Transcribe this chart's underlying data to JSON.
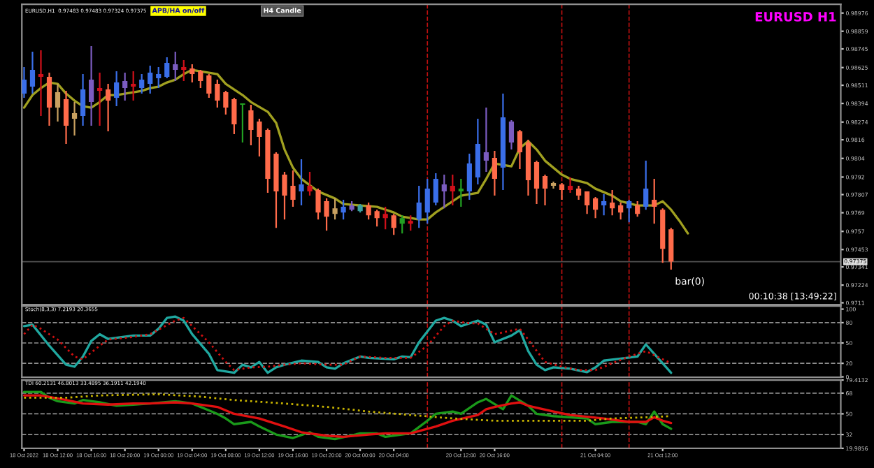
{
  "chart_data": [
    {
      "type": "candlestick",
      "title": "EURUSD,H1  0.97483 0.97483 0.97324 0.97375",
      "annotations": [
        "APB/HA on/off",
        "H4 Candle",
        "EURUSD H1",
        "00:10:38 [13:49:22]",
        {
          "text": "bar(0)",
          "x": "2022-10-21T13:00",
          "y": 0.97324
        }
      ],
      "x": [
        "2022-10-18T08:00",
        "2022-10-18T09:00",
        "2022-10-18T10:00",
        "2022-10-18T11:00",
        "2022-10-18T12:00",
        "2022-10-18T13:00",
        "2022-10-18T14:00",
        "2022-10-18T15:00",
        "2022-10-18T16:00",
        "2022-10-18T17:00",
        "2022-10-18T18:00",
        "2022-10-18T19:00",
        "2022-10-18T20:00",
        "2022-10-18T21:00",
        "2022-10-18T22:00",
        "2022-10-18T23:00",
        "2022-10-19T00:00",
        "2022-10-19T01:00",
        "2022-10-19T02:00",
        "2022-10-19T03:00",
        "2022-10-19T04:00",
        "2022-10-19T05:00",
        "2022-10-19T06:00",
        "2022-10-19T07:00",
        "2022-10-19T08:00",
        "2022-10-19T09:00",
        "2022-10-19T10:00",
        "2022-10-19T11:00",
        "2022-10-19T12:00",
        "2022-10-19T13:00",
        "2022-10-19T14:00",
        "2022-10-19T15:00",
        "2022-10-19T16:00",
        "2022-10-19T17:00",
        "2022-10-19T18:00",
        "2022-10-19T19:00",
        "2022-10-19T20:00",
        "2022-10-19T21:00",
        "2022-10-19T22:00",
        "2022-10-19T23:00",
        "2022-10-20T00:00",
        "2022-10-20T01:00",
        "2022-10-20T02:00",
        "2022-10-20T03:00",
        "2022-10-20T04:00",
        "2022-10-20T05:00",
        "2022-10-20T06:00",
        "2022-10-20T07:00",
        "2022-10-20T08:00",
        "2022-10-20T09:00",
        "2022-10-20T10:00",
        "2022-10-20T11:00",
        "2022-10-20T12:00",
        "2022-10-20T13:00",
        "2022-10-20T14:00",
        "2022-10-20T15:00",
        "2022-10-20T16:00",
        "2022-10-20T17:00",
        "2022-10-20T18:00",
        "2022-10-20T19:00",
        "2022-10-20T20:00",
        "2022-10-20T21:00",
        "2022-10-20T22:00",
        "2022-10-20T23:00",
        "2022-10-21T00:00",
        "2022-10-21T01:00",
        "2022-10-21T02:00",
        "2022-10-21T03:00",
        "2022-10-21T04:00",
        "2022-10-21T05:00",
        "2022-10-21T06:00",
        "2022-10-21T07:00",
        "2022-10-21T08:00",
        "2022-10-21T09:00",
        "2022-10-21T10:00",
        "2022-10-21T11:00",
        "2022-10-21T12:00",
        "2022-10-21T13:00"
      ],
      "ohlc": [
        [
          0.98457,
          0.98628,
          0.9843,
          0.98547
        ],
        [
          0.98502,
          0.98727,
          0.98457,
          0.9861
        ],
        [
          0.98583,
          0.98736,
          0.98313,
          0.98565
        ],
        [
          0.98565,
          0.98592,
          0.9825,
          0.98367
        ],
        [
          0.98367,
          0.9852,
          0.98277,
          0.98466
        ],
        [
          0.98421,
          0.98475,
          0.98133,
          0.9825
        ],
        [
          0.98295,
          0.98403,
          0.98187,
          0.98331
        ],
        [
          0.98313,
          0.98583,
          0.9825,
          0.98484
        ],
        [
          0.98403,
          0.98763,
          0.9825,
          0.98547
        ],
        [
          0.98493,
          0.98592,
          0.9825,
          0.98475
        ],
        [
          0.98484,
          0.9852,
          0.98214,
          0.98412
        ],
        [
          0.9843,
          0.98601,
          0.98376,
          0.98529
        ],
        [
          0.98493,
          0.98592,
          0.98412,
          0.98538
        ],
        [
          0.9852,
          0.98601,
          0.98412,
          0.98502
        ],
        [
          0.98493,
          0.98583,
          0.98457,
          0.98547
        ],
        [
          0.9852,
          0.98637,
          0.98457,
          0.98592
        ],
        [
          0.98556,
          0.98628,
          0.98493,
          0.98583
        ],
        [
          0.98565,
          0.98691,
          0.98556,
          0.98655
        ],
        [
          0.9861,
          0.98727,
          0.98538,
          0.98646
        ],
        [
          0.98628,
          0.98673,
          0.98538,
          0.9861
        ],
        [
          0.98619,
          0.98646,
          0.98529,
          0.98583
        ],
        [
          0.98601,
          0.9861,
          0.98493,
          0.98538
        ],
        [
          0.98574,
          0.98583,
          0.9843,
          0.98457
        ],
        [
          0.9852,
          0.98547,
          0.98367,
          0.98412
        ],
        [
          0.98466,
          0.98475,
          0.98322,
          0.98367
        ],
        [
          0.98421,
          0.9843,
          0.98196,
          0.98259
        ],
        [
          0.98385,
          0.98394,
          0.98142,
          0.98394
        ],
        [
          0.98349,
          0.98385,
          0.98124,
          0.98223
        ],
        [
          0.98277,
          0.98295,
          0.98052,
          0.98178
        ],
        [
          0.98223,
          0.98232,
          0.97818,
          0.97908
        ],
        [
          0.9807,
          0.98079,
          0.97593,
          0.97827
        ],
        [
          0.97935,
          0.97953,
          0.97647,
          0.978
        ],
        [
          0.97863,
          0.97962,
          0.97728,
          0.97773
        ],
        [
          0.97827,
          0.98034,
          0.97737,
          0.97872
        ],
        [
          0.97863,
          0.97953,
          0.978,
          0.97827
        ],
        [
          0.97836,
          0.97845,
          0.97647,
          0.97692
        ],
        [
          0.97764,
          0.97782,
          0.97575,
          0.97665
        ],
        [
          0.97683,
          0.97782,
          0.97647,
          0.97719
        ],
        [
          0.97692,
          0.97773,
          0.97647,
          0.97728
        ],
        [
          0.9771,
          0.97764,
          0.97701,
          0.97737
        ],
        [
          0.97701,
          0.97746,
          0.97692,
          0.97737
        ],
        [
          0.97737,
          0.97755,
          0.97647,
          0.97674
        ],
        [
          0.97701,
          0.9771,
          0.97602,
          0.97656
        ],
        [
          0.97683,
          0.97728,
          0.97584,
          0.97656
        ],
        [
          0.97674,
          0.97683,
          0.97548,
          0.97593
        ],
        [
          0.9762,
          0.97674,
          0.97557,
          0.97656
        ],
        [
          0.97638,
          0.97674,
          0.97575,
          0.9762
        ],
        [
          0.97647,
          0.97863,
          0.97593,
          0.97755
        ],
        [
          0.97692,
          0.97908,
          0.9762,
          0.97845
        ],
        [
          0.97755,
          0.97944,
          0.97737,
          0.97908
        ],
        [
          0.97827,
          0.97935,
          0.97719,
          0.97872
        ],
        [
          0.97863,
          0.97935,
          0.97737,
          0.97827
        ],
        [
          0.97827,
          0.97908,
          0.97728,
          0.97845
        ],
        [
          0.97827,
          0.9807,
          0.97773,
          0.98007
        ],
        [
          0.97917,
          0.98295,
          0.97872,
          0.98133
        ],
        [
          0.98025,
          0.98367,
          0.97953,
          0.98079
        ],
        [
          0.98043,
          0.98088,
          0.978,
          0.97908
        ],
        [
          0.9798,
          0.98457,
          0.97836,
          0.98304
        ],
        [
          0.98142,
          0.98286,
          0.98097,
          0.98277
        ],
        [
          0.98214,
          0.98223,
          0.97971,
          0.98079
        ],
        [
          0.98142,
          0.9816,
          0.978,
          0.97899
        ],
        [
          0.98016,
          0.98025,
          0.97746,
          0.97845
        ],
        [
          0.97926,
          0.97935,
          0.97737,
          0.97845
        ],
        [
          0.97863,
          0.9789,
          0.97845,
          0.97881
        ],
        [
          0.97872,
          0.97881,
          0.97773,
          0.97836
        ],
        [
          0.97863,
          0.97917,
          0.97818,
          0.97836
        ],
        [
          0.97845,
          0.97863,
          0.97773,
          0.978
        ],
        [
          0.97827,
          0.97827,
          0.97683,
          0.97737
        ],
        [
          0.97782,
          0.97791,
          0.97656,
          0.9771
        ],
        [
          0.97737,
          0.97809,
          0.97674,
          0.97764
        ],
        [
          0.97755,
          0.97836,
          0.97674,
          0.97719
        ],
        [
          0.97737,
          0.97755,
          0.97647,
          0.97692
        ],
        [
          0.97719,
          0.97773,
          0.97629,
          0.97764
        ],
        [
          0.97737,
          0.97764,
          0.97665,
          0.97683
        ],
        [
          0.97728,
          0.98025,
          0.9771,
          0.97845
        ],
        [
          0.97773,
          0.97908,
          0.9762,
          0.97728
        ],
        [
          0.9771,
          0.97719,
          0.97368,
          0.97458
        ],
        [
          0.97584,
          0.97593,
          0.97324,
          0.97375
        ]
      ],
      "colors": [
        "#3a6ee8",
        "#3a6ee8",
        "#d0101a",
        "#ff6b4a",
        "#c8a060",
        "#ff6b4a",
        "#c8a060",
        "#3a6ee8",
        "#7b5cc0",
        "#d0101a",
        "#ff6b4a",
        "#3a6ee8",
        "#7b5cc0",
        "#d0101a",
        "#3a6ee8",
        "#3a6ee8",
        "#3a6ee8",
        "#3a6ee8",
        "#7b5cc0",
        "#d0101a",
        "#ff6b4a",
        "#ff6b4a",
        "#ff6b4a",
        "#ff6b4a",
        "#ff6b4a",
        "#ff6b4a",
        "#22a022",
        "#ff6b4a",
        "#ff6b4a",
        "#ff6b4a",
        "#ff6b4a",
        "#ff6b4a",
        "#ff6b4a",
        "#3a6ee8",
        "#d0101a",
        "#ff6b4a",
        "#ff6b4a",
        "#c8a060",
        "#3a6ee8",
        "#7b5cc0",
        "#3aa0a0",
        "#ff6b4a",
        "#ff6b4a",
        "#d0101a",
        "#ff6b4a",
        "#22a022",
        "#d0101a",
        "#3a6ee8",
        "#3a6ee8",
        "#3a6ee8",
        "#7b5cc0",
        "#d0101a",
        "#22a022",
        "#3a6ee8",
        "#3a6ee8",
        "#7b5cc0",
        "#ff6b4a",
        "#3a6ee8",
        "#7b5cc0",
        "#ff6b4a",
        "#ff6b4a",
        "#ff6b4a",
        "#ff6b4a",
        "#c8a060",
        "#ff6b4a",
        "#d0101a",
        "#ff6b4a",
        "#ff6b4a",
        "#ff6b4a",
        "#3a6ee8",
        "#ff6b4a",
        "#ff6b4a",
        "#3a6ee8",
        "#ff6b4a",
        "#3a6ee8",
        "#ff6b4a",
        "#ff6b4a",
        "#ff6b4a"
      ],
      "series": [
        {
          "type": "line",
          "color": "#a0a020",
          "x": [
            "2022-10-18T08:00",
            "2022-10-18T09:00",
            "2022-10-18T10:00",
            "2022-10-18T11:00",
            "2022-10-18T12:00",
            "2022-10-18T13:00",
            "2022-10-18T14:00",
            "2022-10-18T15:00",
            "2022-10-18T16:00",
            "2022-10-18T17:00",
            "2022-10-18T18:00",
            "2022-10-18T19:00",
            "2022-10-18T20:00",
            "2022-10-18T22:00",
            "2022-10-18T23:00",
            "2022-10-19T00:00",
            "2022-10-19T01:00",
            "2022-10-19T02:00",
            "2022-10-19T03:00",
            "2022-10-19T04:00",
            "2022-10-19T05:00",
            "2022-10-19T07:00",
            "2022-10-19T08:00",
            "2022-10-19T10:00",
            "2022-10-19T11:00",
            "2022-10-19T13:00",
            "2022-10-19T14:00",
            "2022-10-19T15:00",
            "2022-10-19T16:00",
            "2022-10-19T17:00",
            "2022-10-19T19:00",
            "2022-10-19T21:00",
            "2022-10-19T22:00",
            "2022-10-20T00:00",
            "2022-10-20T02:00",
            "2022-10-20T04:00",
            "2022-10-20T05:00",
            "2022-10-20T07:00",
            "2022-10-20T08:00",
            "2022-10-20T09:00",
            "2022-10-20T10:00",
            "2022-10-20T12:00",
            "2022-10-20T14:00",
            "2022-10-20T15:00",
            "2022-10-20T16:00",
            "2022-10-20T18:00",
            "2022-10-20T19:00",
            "2022-10-20T20:00",
            "2022-10-20T21:00",
            "2022-10-20T22:00",
            "2022-10-21T00:00",
            "2022-10-21T01:00",
            "2022-10-21T03:00",
            "2022-10-21T04:00",
            "2022-10-21T06:00",
            "2022-10-21T07:00",
            "2022-10-21T09:00",
            "2022-10-21T11:00",
            "2022-10-21T12:00",
            "2022-10-21T13:00",
            "2022-10-21T14:00",
            "2022-10-21T15:00"
          ],
          "values": [
            0.98367,
            0.98448,
            0.98493,
            0.98529,
            0.9852,
            0.98457,
            0.98412,
            0.98376,
            0.98367,
            0.98403,
            0.98448,
            0.98448,
            0.98457,
            0.98475,
            0.98493,
            0.98502,
            0.98529,
            0.98547,
            0.98583,
            0.9861,
            0.98601,
            0.98583,
            0.9852,
            0.98448,
            0.98403,
            0.9834,
            0.98268,
            0.98097,
            0.9798,
            0.97908,
            0.97827,
            0.97782,
            0.97746,
            0.97737,
            0.97728,
            0.97692,
            0.97665,
            0.97647,
            0.97647,
            0.97692,
            0.97728,
            0.978,
            0.97818,
            0.97908,
            0.98007,
            0.97989,
            0.98106,
            0.98151,
            0.98097,
            0.98025,
            0.97935,
            0.97908,
            0.97881,
            0.97845,
            0.978,
            0.97764,
            0.97737,
            0.97737,
            0.97764,
            0.9771,
            0.97638,
            0.97557
          ]
        }
      ],
      "xlim": [
        "2022-10-18T07:44",
        "2022-10-22T09:12"
      ],
      "ylim": [
        0.97098,
        0.99033
      ],
      "yticks": [
        0.98976,
        0.98859,
        0.98745,
        0.98625,
        0.98511,
        0.98394,
        0.98274,
        0.9816,
        0.9804,
        0.9792,
        0.97807,
        0.9769,
        0.9757,
        0.97453,
        0.97341,
        0.97224,
        0.9711
      ],
      "ref_lines": [
        {
          "axis": "x",
          "value": "2022-10-20T08:00",
          "color": "#c01010",
          "line_style": "dashed"
        },
        {
          "axis": "x",
          "value": "2022-10-21T00:00",
          "color": "#c01010",
          "line_style": "dashed"
        },
        {
          "axis": "x",
          "value": "2022-10-21T08:00",
          "color": "#c01010",
          "line_style": "dashed"
        },
        {
          "axis": "y",
          "value": 0.97375,
          "label": "0.97375",
          "color": "#505050",
          "line_style": "solid"
        }
      ],
      "tick_labels": "y"
    },
    {
      "type": "line",
      "title": "Stoch(8,3,3) 7.2193 20.3655",
      "series": [
        {
          "color": "#20a8a0",
          "line_style": "solid",
          "x": [
            "2022-10-18T08:00",
            "2022-10-18T09:00",
            "2022-10-18T11:00",
            "2022-10-18T13:00",
            "2022-10-18T14:00",
            "2022-10-18T15:00",
            "2022-10-18T16:00",
            "2022-10-18T17:00",
            "2022-10-18T18:00",
            "2022-10-18T21:00",
            "2022-10-18T23:00",
            "2022-10-19T00:00",
            "2022-10-19T01:00",
            "2022-10-19T02:00",
            "2022-10-19T03:00",
            "2022-10-19T04:00",
            "2022-10-19T06:00",
            "2022-10-19T07:00",
            "2022-10-19T09:00",
            "2022-10-19T10:00",
            "2022-10-19T11:00",
            "2022-10-19T12:00",
            "2022-10-19T13:00",
            "2022-10-19T14:00",
            "2022-10-19T15:00",
            "2022-10-19T17:00",
            "2022-10-19T19:00",
            "2022-10-19T20:00",
            "2022-10-19T21:00",
            "2022-10-19T22:00",
            "2022-10-20T00:00",
            "2022-10-20T01:00",
            "2022-10-20T04:00",
            "2022-10-20T05:00",
            "2022-10-20T06:00",
            "2022-10-20T07:00",
            "2022-10-20T08:00",
            "2022-10-20T09:00",
            "2022-10-20T10:00",
            "2022-10-20T11:00",
            "2022-10-20T12:00",
            "2022-10-20T14:00",
            "2022-10-20T15:00",
            "2022-10-20T16:00",
            "2022-10-20T18:00",
            "2022-10-20T19:00",
            "2022-10-20T20:00",
            "2022-10-20T21:00",
            "2022-10-20T22:00",
            "2022-10-20T23:00",
            "2022-10-21T01:00",
            "2022-10-21T03:00",
            "2022-10-21T04:00",
            "2022-10-21T05:00",
            "2022-10-21T07:00",
            "2022-10-21T09:00",
            "2022-10-21T10:00",
            "2022-10-21T11:00",
            "2022-10-21T13:00"
          ],
          "values": [
            75,
            77,
            46,
            18,
            15,
            30,
            53,
            63,
            56,
            61,
            61,
            71,
            87,
            89,
            83,
            63,
            34,
            10,
            6,
            18,
            14,
            22,
            6,
            14,
            18,
            24,
            22,
            14,
            12,
            20,
            30,
            28,
            26,
            30,
            29,
            51,
            67,
            83,
            87,
            83,
            75,
            83,
            77,
            51,
            61,
            69,
            38,
            18,
            10,
            14,
            12,
            7,
            14,
            24,
            27,
            30,
            48,
            34,
            6
          ]
        },
        {
          "color": "#d01010",
          "line_style": "dotted",
          "x": [
            "2022-10-18T08:00",
            "2022-10-18T09:00",
            "2022-10-18T10:00",
            "2022-10-18T12:00",
            "2022-10-18T14:00",
            "2022-10-18T15:00",
            "2022-10-18T17:00",
            "2022-10-18T18:00",
            "2022-10-18T21:00",
            "2022-10-18T23:00",
            "2022-10-19T02:00",
            "2022-10-19T03:00",
            "2022-10-19T04:00",
            "2022-10-19T06:00",
            "2022-10-19T08:00",
            "2022-10-19T09:00",
            "2022-10-19T11:00",
            "2022-10-19T13:00",
            "2022-10-19T15:00",
            "2022-10-19T17:00",
            "2022-10-19T20:00",
            "2022-10-19T22:00",
            "2022-10-20T00:00",
            "2022-10-20T03:00",
            "2022-10-20T06:00",
            "2022-10-20T08:00",
            "2022-10-20T10:00",
            "2022-10-20T11:00",
            "2022-10-20T13:00",
            "2022-10-20T14:00",
            "2022-10-20T16:00",
            "2022-10-20T19:00",
            "2022-10-20T20:00",
            "2022-10-20T22:00",
            "2022-10-21T00:00",
            "2022-10-21T02:00",
            "2022-10-21T04:00",
            "2022-10-21T06:00",
            "2022-10-21T08:00",
            "2022-10-21T10:00",
            "2022-10-21T13:00"
          ],
          "values": [
            63,
            77,
            71,
            55,
            30,
            26,
            46,
            55,
            59,
            63,
            83,
            87,
            75,
            51,
            22,
            10,
            14,
            15,
            18,
            20,
            18,
            18,
            30,
            28,
            28,
            46,
            75,
            83,
            79,
            79,
            63,
            71,
            55,
            22,
            15,
            10,
            10,
            20,
            30,
            38,
            20
          ]
        }
      ],
      "xlim": [
        "2022-10-18T07:44",
        "2022-10-22T09:12"
      ],
      "ylim": [
        -0.5,
        104.5
      ],
      "yticks": [
        0,
        20,
        50,
        80,
        100
      ],
      "ref_lines": [
        {
          "axis": "y",
          "value": 80,
          "color": "#909090",
          "line_style": "dashed"
        },
        {
          "axis": "y",
          "value": 50,
          "color": "#909090",
          "line_style": "dashed"
        },
        {
          "axis": "y",
          "value": 20,
          "color": "#909090",
          "line_style": "dashed"
        },
        {
          "axis": "x",
          "value": "2022-10-20T08:00",
          "color": "#c01010",
          "line_style": "dashed"
        },
        {
          "axis": "x",
          "value": "2022-10-21T00:00",
          "color": "#c01010",
          "line_style": "dashed"
        },
        {
          "axis": "x",
          "value": "2022-10-21T08:00",
          "color": "#c01010",
          "line_style": "dashed"
        }
      ],
      "tick_labels": "y"
    },
    {
      "type": "line",
      "title": "TDI 60.2131 46.8013 33.4895 36.1911 42.1940",
      "series": [
        {
          "color": "#1a9a1a",
          "line_style": "solid",
          "x": [
            "2022-10-18T08:00",
            "2022-10-18T10:00",
            "2022-10-18T11:00",
            "2022-10-18T12:00",
            "2022-10-18T14:00",
            "2022-10-18T15:00",
            "2022-10-18T17:00",
            "2022-10-18T19:00",
            "2022-10-18T21:00",
            "2022-10-18T23:00",
            "2022-10-19T02:00",
            "2022-10-19T04:00",
            "2022-10-19T06:00",
            "2022-10-19T07:00",
            "2022-10-19T08:00",
            "2022-10-19T09:00",
            "2022-10-19T11:00",
            "2022-10-19T12:00",
            "2022-10-19T14:00",
            "2022-10-19T16:00",
            "2022-10-19T18:00",
            "2022-10-19T19:00",
            "2022-10-19T21:00",
            "2022-10-20T00:00",
            "2022-10-20T02:00",
            "2022-10-20T03:00",
            "2022-10-20T06:00",
            "2022-10-20T08:00",
            "2022-10-20T09:00",
            "2022-10-20T11:00",
            "2022-10-20T12:00",
            "2022-10-20T14:00",
            "2022-10-20T15:00",
            "2022-10-20T17:00",
            "2022-10-20T18:00",
            "2022-10-20T20:00",
            "2022-10-20T21:00",
            "2022-10-20T23:00",
            "2022-10-21T03:00",
            "2022-10-21T04:00",
            "2022-10-21T06:00",
            "2022-10-21T09:00",
            "2022-10-21T10:00",
            "2022-10-21T11:00",
            "2022-10-21T12:00",
            "2022-10-21T13:00"
          ],
          "values": [
            69,
            69,
            64,
            61,
            59,
            62,
            60,
            57,
            58,
            59,
            61,
            59,
            53,
            50,
            46,
            41,
            43,
            39,
            32,
            29,
            34,
            30,
            28,
            33,
            33,
            30,
            33,
            44,
            50,
            52,
            50,
            60,
            63,
            54,
            66,
            57,
            50,
            48,
            46,
            41,
            43,
            43,
            41,
            52,
            41,
            37
          ]
        },
        {
          "color": "#e01010",
          "line_style": "solid",
          "x": [
            "2022-10-18T08:00",
            "2022-10-18T10:00",
            "2022-10-18T13:00",
            "2022-10-18T15:00",
            "2022-10-18T18:00",
            "2022-10-18T21:00",
            "2022-10-18T23:00",
            "2022-10-19T02:00",
            "2022-10-19T04:00",
            "2022-10-19T07:00",
            "2022-10-19T09:00",
            "2022-10-19T12:00",
            "2022-10-19T15:00",
            "2022-10-19T17:00",
            "2022-10-19T20:00",
            "2022-10-19T22:00",
            "2022-10-20T01:00",
            "2022-10-20T03:00",
            "2022-10-20T06:00",
            "2022-10-20T09:00",
            "2022-10-20T11:00",
            "2022-10-20T14:00",
            "2022-10-20T15:00",
            "2022-10-20T16:00",
            "2022-10-20T18:00",
            "2022-10-20T19:00",
            "2022-10-20T20:00",
            "2022-10-20T23:00",
            "2022-10-21T01:00",
            "2022-10-21T05:00",
            "2022-10-21T08:00",
            "2022-10-21T10:00",
            "2022-10-21T11:00",
            "2022-10-21T12:00",
            "2022-10-21T13:00"
          ],
          "values": [
            66,
            66,
            62,
            59,
            58,
            59,
            59,
            60,
            59,
            56,
            50,
            46,
            39,
            34,
            31,
            30,
            32,
            33,
            33,
            39,
            44,
            49,
            54,
            56,
            59,
            60,
            57,
            52,
            49,
            46,
            43,
            43,
            47,
            44,
            42
          ]
        },
        {
          "color": "#c8b400",
          "line_style": "dotted",
          "x": [
            "2022-10-18T08:00",
            "2022-10-18T13:00",
            "2022-10-18T17:00",
            "2022-10-19T00:00",
            "2022-10-19T05:00",
            "2022-10-19T09:00",
            "2022-10-19T15:00",
            "2022-10-19T20:00",
            "2022-10-20T01:00",
            "2022-10-20T06:00",
            "2022-10-20T11:00",
            "2022-10-20T16:00",
            "2022-10-20T21:00",
            "2022-10-21T03:00",
            "2022-10-21T06:00",
            "2022-10-21T10:00",
            "2022-10-21T13:00"
          ],
          "values": [
            64,
            64,
            66,
            67,
            65,
            62,
            59,
            56,
            52,
            49,
            46,
            44,
            44,
            44,
            46,
            47,
            48
          ]
        }
      ],
      "xlim": [
        "2022-10-18T07:44",
        "2022-10-22T09:12"
      ],
      "ylim": [
        19.9856,
        79.4132
      ],
      "yticks": [
        19.9856,
        32,
        50,
        68,
        79.4132
      ],
      "xticks": [
        {
          "value": "2022-10-18T08:00",
          "label": "18 Oct 2022"
        },
        {
          "value": "2022-10-18T12:00",
          "label": "18 Oct 12:00"
        },
        {
          "value": "2022-10-18T16:00",
          "label": "18 Oct 16:00"
        },
        {
          "value": "2022-10-18T20:00",
          "label": "18 Oct 20:00"
        },
        {
          "value": "2022-10-19T00:00",
          "label": "19 Oct 00:00"
        },
        {
          "value": "2022-10-19T04:00",
          "label": "19 Oct 04:00"
        },
        {
          "value": "2022-10-19T08:00",
          "label": "19 Oct 08:00"
        },
        {
          "value": "2022-10-19T12:00",
          "label": "19 Oct 12:00"
        },
        {
          "value": "2022-10-19T16:00",
          "label": "19 Oct 16:00"
        },
        {
          "value": "2022-10-19T20:00",
          "label": "19 Oct 20:00"
        },
        {
          "value": "2022-10-20T00:00",
          "label": "20 Oct 00:00"
        },
        {
          "value": "2022-10-20T04:00",
          "label": "20 Oct 04:00"
        },
        {
          "value": "2022-10-20T12:00",
          "label": "20 Oct 12:00"
        },
        {
          "value": "2022-10-20T16:00",
          "label": "20 Oct 16:00"
        },
        {
          "value": "2022-10-21T04:00",
          "label": "21 Oct 04:00"
        },
        {
          "value": "2022-10-21T12:00",
          "label": "21 Oct 12:00"
        }
      ],
      "ref_lines": [
        {
          "axis": "y",
          "value": 68,
          "color": "#909090",
          "line_style": "dashed"
        },
        {
          "axis": "y",
          "value": 50,
          "color": "#909090",
          "line_style": "dashed"
        },
        {
          "axis": "y",
          "value": 32,
          "color": "#909090",
          "line_style": "dashed"
        },
        {
          "axis": "x",
          "value": "2022-10-20T08:00",
          "color": "#c01010",
          "line_style": "dashed"
        },
        {
          "axis": "x",
          "value": "2022-10-21T00:00",
          "color": "#c01010",
          "line_style": "dashed"
        },
        {
          "axis": "x",
          "value": "2022-10-21T08:00",
          "color": "#c01010",
          "line_style": "dashed"
        }
      ]
    }
  ]
}
